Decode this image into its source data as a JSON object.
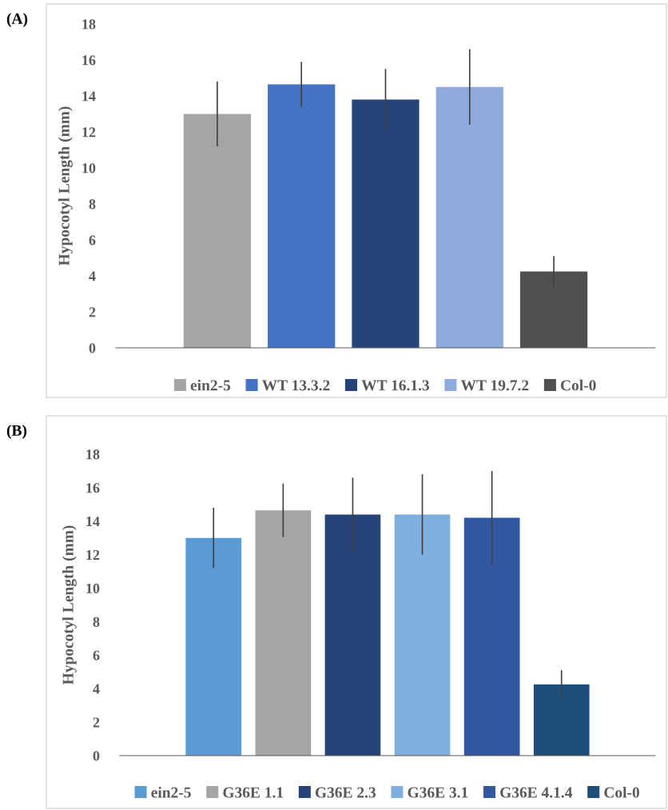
{
  "chart_data": [
    {
      "type": "bar",
      "title": "(A)",
      "ylabel": "Hypocotyl Length (mm)",
      "categories": [
        null
      ],
      "ylim": [
        0,
        18
      ],
      "yticks": [
        0,
        2,
        4,
        6,
        8,
        10,
        12,
        14,
        16,
        18
      ],
      "grid": false,
      "legend": "bottom",
      "series": [
        {
          "name": "ein2-5",
          "color": "#a5a5a5",
          "values": [
            13.0
          ],
          "errors": [
            1.8
          ]
        },
        {
          "name": "WT 13.3.2",
          "color": "#4472c4",
          "values": [
            14.65
          ],
          "errors": [
            1.25
          ]
        },
        {
          "name": "WT 16.1.3",
          "color": "#264478",
          "values": [
            13.8
          ],
          "errors": [
            1.7
          ]
        },
        {
          "name": "WT 19.7.2",
          "color": "#8faadc",
          "values": [
            14.5
          ],
          "errors": [
            2.1
          ]
        },
        {
          "name": "Col-0",
          "color": "#505050",
          "values": [
            4.25
          ],
          "errors": [
            0.85
          ]
        }
      ]
    },
    {
      "type": "bar",
      "title": "(B)",
      "ylabel": "Hypocotyl Length (mm)",
      "categories": [
        null
      ],
      "ylim": [
        0,
        18
      ],
      "yticks": [
        0,
        2,
        4,
        6,
        8,
        10,
        12,
        14,
        16,
        18
      ],
      "grid": false,
      "legend": "bottom",
      "series": [
        {
          "name": "ein2-5",
          "color": "#5b9bd5",
          "values": [
            13.0
          ],
          "errors": [
            1.8
          ]
        },
        {
          "name": "G36E 1.1",
          "color": "#a5a5a5",
          "values": [
            14.65
          ],
          "errors": [
            1.6
          ]
        },
        {
          "name": "G36E 2.3",
          "color": "#264478",
          "values": [
            14.4
          ],
          "errors": [
            2.2
          ]
        },
        {
          "name": "G36E 3.1",
          "color": "#7fafdf",
          "values": [
            14.4
          ],
          "errors": [
            2.4
          ]
        },
        {
          "name": "G36E 4.1.4",
          "color": "#3158a0",
          "values": [
            14.2
          ],
          "errors": [
            2.8
          ]
        },
        {
          "name": "Col-0",
          "color": "#1f4e79",
          "values": [
            4.25
          ],
          "errors": [
            0.85
          ]
        }
      ]
    }
  ]
}
